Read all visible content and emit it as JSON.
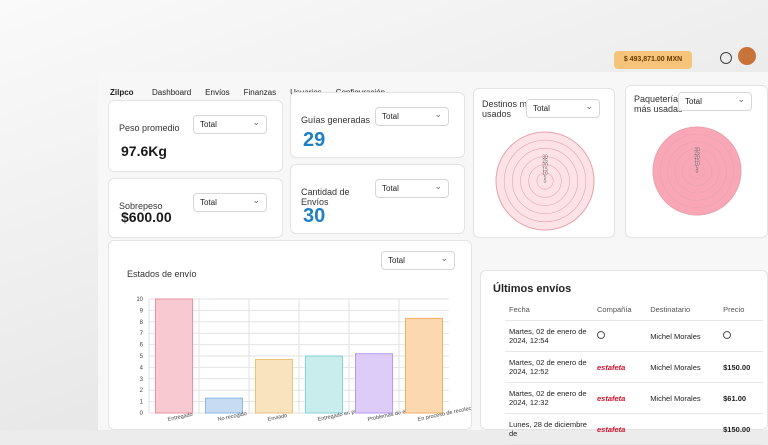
{
  "nav": {
    "brand": "Zilpco",
    "links": [
      "Dashboard",
      "Envíos",
      "Finanzas",
      "Usuarios",
      "Configuración"
    ],
    "balance": "$ 493,871.00 MXN"
  },
  "cards": [
    {
      "label": "Peso promedio",
      "value": "97.6Kg",
      "filter": "Total"
    },
    {
      "label": "Guías generadas",
      "value": "29",
      "filter": "Total"
    },
    {
      "label": "Sobrepeso",
      "value": "$600.00",
      "filter": "Total"
    },
    {
      "label": "Cantidad de Envíos",
      "value": "30",
      "filter": "Total"
    }
  ],
  "destinos": {
    "title": "Destinos más usados",
    "filter": "Total",
    "rticks": [
      0,
      5,
      10,
      15,
      20,
      25,
      30
    ]
  },
  "paqueteria": {
    "title": "Paquetería más usadas",
    "filter": "Total",
    "rticks": [
      0,
      5,
      10,
      15,
      20,
      25,
      30
    ]
  },
  "chart_data": {
    "type": "bar",
    "title": "Estados de envío",
    "filter": "Total",
    "categories": [
      "Entregado",
      "No recogido",
      "Enviado",
      "Entregado en punto de venta",
      "Problemas de entrega",
      "En proceso de recolección"
    ],
    "values": [
      10,
      1.3,
      4.7,
      5,
      5.2,
      8.3
    ],
    "colors": [
      "#f9c9d1",
      "#c7dcf3",
      "#f9e3bf",
      "#c9ecec",
      "#dcccf7",
      "#fbd8b0"
    ],
    "strokes": [
      "#ef8fa0",
      "#8cb7e6",
      "#eec07d",
      "#86d3d3",
      "#b49af0",
      "#f2ae62"
    ],
    "ylim": [
      0,
      10
    ],
    "yticks": [
      0,
      1,
      2,
      3,
      4,
      5,
      6,
      7,
      8,
      9,
      10
    ],
    "grid": true
  },
  "ultimos": {
    "title": "Últimos envíos",
    "headers": [
      "Fecha",
      "Compañía",
      "Destinatario",
      "Precio"
    ],
    "rows": [
      {
        "fecha": "Martes, 02 de enero de 2024, 12:54",
        "destinatario": "Michel Morales"
      },
      {
        "fecha": "Martes, 02 de enero de 2024, 12:52",
        "compania": "estafeta",
        "destinatario": "Michel Morales",
        "precio": "$150.00"
      },
      {
        "fecha": "Martes, 02 de enero de 2024, 12:32",
        "compania": "estafeta",
        "destinatario": "Michel Morales",
        "precio": "$61.00"
      },
      {
        "fecha": "Lunes, 28 de diciembre de",
        "compania": "estafeta",
        "precio": "$150.00"
      }
    ]
  }
}
